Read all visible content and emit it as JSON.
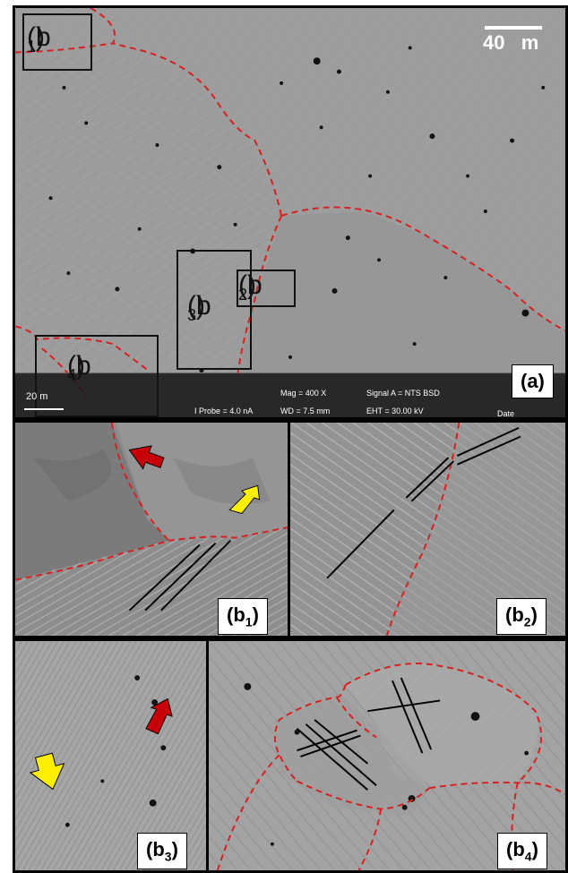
{
  "figure": {
    "labels": {
      "a": "(a)",
      "b1": "(b",
      "b1_sub": "1",
      "b2": "(b",
      "b2_sub": "2",
      "b3": "(b",
      "b3_sub": "3",
      "b4": "(b",
      "b4_sub": "4",
      "close": ")"
    },
    "scale_bar": "40   m",
    "inset_scale": "20 m",
    "sem_info": {
      "mag": "Mag =   400 X",
      "signal": "Signal A = NTS BSD",
      "probe": "I Probe =   4.0 nA",
      "wd": "WD =  7.5 mm",
      "eht": "EHT = 30.00 kV",
      "date": "Date"
    },
    "colors": {
      "boundary": "#d82020",
      "arrow_red": "#c8000a",
      "arrow_yellow": "#ffee00"
    }
  }
}
